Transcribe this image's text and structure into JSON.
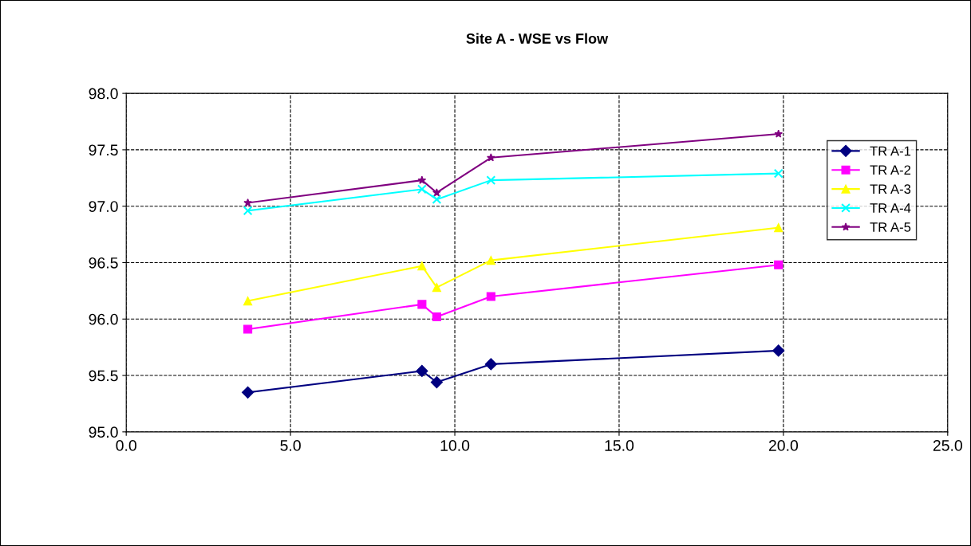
{
  "chart_data": {
    "type": "line",
    "title": "Site A - WSE vs Flow",
    "x": [
      3.7,
      9.0,
      9.45,
      11.1,
      19.85
    ],
    "series": [
      {
        "name": "TR A-1",
        "color": "#000080",
        "marker": "diamond",
        "values": [
          95.35,
          95.54,
          95.44,
          95.6,
          95.72
        ]
      },
      {
        "name": "TR A-2",
        "color": "#ff00ff",
        "marker": "square",
        "values": [
          95.91,
          96.13,
          96.02,
          96.2,
          96.48
        ]
      },
      {
        "name": "TR A-3",
        "color": "#ffff00",
        "marker": "triangle",
        "values": [
          96.16,
          96.47,
          96.28,
          96.52,
          96.81
        ]
      },
      {
        "name": "TR A-4",
        "color": "#00ffff",
        "marker": "cross",
        "values": [
          96.96,
          97.15,
          97.06,
          97.23,
          97.29
        ]
      },
      {
        "name": "TR A-5",
        "color": "#800080",
        "marker": "star",
        "values": [
          97.03,
          97.23,
          97.12,
          97.43,
          97.64
        ]
      }
    ],
    "xlim": [
      0,
      25
    ],
    "xticks": [
      {
        "value": 0,
        "label": "0.0"
      },
      {
        "value": 5,
        "label": "5.0"
      },
      {
        "value": 10,
        "label": "10.0"
      },
      {
        "value": 15,
        "label": "15.0"
      },
      {
        "value": 20,
        "label": "20.0"
      },
      {
        "value": 25,
        "label": "25.0"
      }
    ],
    "ylim": [
      95,
      98
    ],
    "yticks": [
      {
        "value": 95,
        "label": "95.0"
      },
      {
        "value": 95.5,
        "label": "95.5"
      },
      {
        "value": 96,
        "label": "96.0"
      },
      {
        "value": 96.5,
        "label": "96.5"
      },
      {
        "value": 97,
        "label": "97.0"
      },
      {
        "value": 97.5,
        "label": "97.5"
      },
      {
        "value": 98,
        "label": "98.0"
      }
    ],
    "grid": true,
    "legend": "top right",
    "line_style": "solid"
  }
}
